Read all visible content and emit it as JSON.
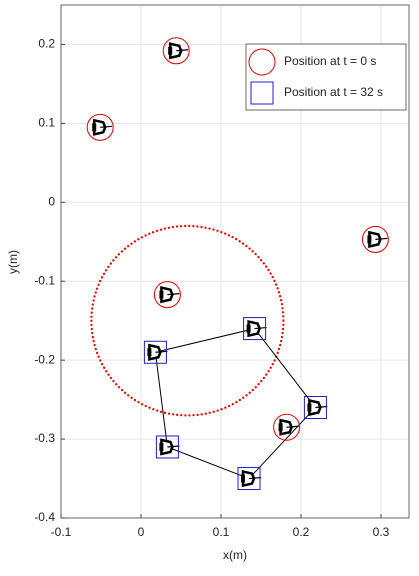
{
  "chart_data": {
    "type": "scatter",
    "x_label": "x(m)",
    "y_label": "y(m)",
    "xlim": [
      -0.1,
      0.335
    ],
    "ylim": [
      -0.4,
      0.25
    ],
    "xticks": [
      -0.1,
      0,
      0.1,
      0.2,
      0.3
    ],
    "yticks": [
      -0.4,
      -0.3,
      -0.2,
      -0.1,
      0,
      0.1,
      0.2
    ],
    "grid": true,
    "legend": "north-east",
    "series": [
      {
        "name": "Position at t = 0 s",
        "color": "#e00000",
        "marker": "circle",
        "x": [
          0.044,
          -0.051,
          0.293,
          0.033,
          0.182
        ],
        "y": [
          0.192,
          0.095,
          -0.047,
          -0.117,
          -0.285
        ]
      },
      {
        "name": "Position at t = 32 s",
        "color": "#2020c0",
        "marker": "square",
        "closed": true,
        "x": [
          0.018,
          0.142,
          0.218,
          0.135,
          0.033
        ],
        "y": [
          -0.19,
          -0.16,
          -0.26,
          -0.35,
          -0.31
        ]
      }
    ],
    "reference_circle": {
      "center": [
        0.058,
        -0.15
      ],
      "radius": 0.12,
      "color": "#e00000"
    }
  }
}
